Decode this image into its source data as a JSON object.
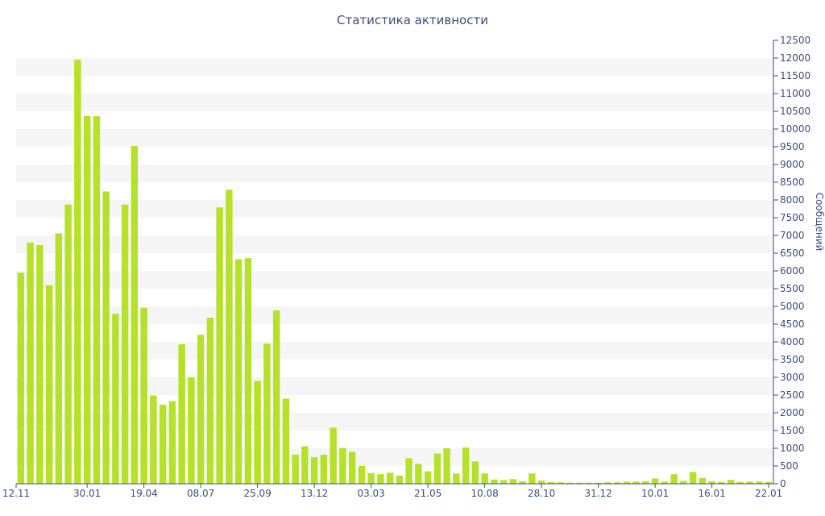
{
  "chart_data": {
    "type": "bar",
    "title": "Статистика активности",
    "xlabel": "",
    "ylabel": "Сообщений",
    "ylim": [
      0,
      12500
    ],
    "y_ticks": [
      0,
      500,
      1000,
      1500,
      2000,
      2500,
      3000,
      3500,
      4000,
      4500,
      5000,
      5500,
      6000,
      6500,
      7000,
      7500,
      8000,
      8500,
      9000,
      9500,
      10000,
      10500,
      11000,
      11500,
      12000,
      12500
    ],
    "x_tick_labels": [
      {
        "label": "12.11",
        "index": 0
      },
      {
        "label": "30.01",
        "index": 7
      },
      {
        "label": "19.04",
        "index": 13
      },
      {
        "label": "08.07",
        "index": 19
      },
      {
        "label": "25.09",
        "index": 25
      },
      {
        "label": "13.12",
        "index": 31
      },
      {
        "label": "03.03",
        "index": 37
      },
      {
        "label": "21.05",
        "index": 43
      },
      {
        "label": "10.08",
        "index": 49
      },
      {
        "label": "28.10",
        "index": 55
      },
      {
        "label": "31.12",
        "index": 61
      },
      {
        "label": "10.01",
        "index": 67
      },
      {
        "label": "16.01",
        "index": 73
      },
      {
        "label": "22.01",
        "index": 79
      }
    ],
    "values": [
      5950,
      6800,
      6730,
      5600,
      7060,
      7870,
      11950,
      10370,
      10360,
      8240,
      4790,
      7870,
      9520,
      4960,
      2490,
      2230,
      2330,
      3930,
      3000,
      4200,
      4680,
      7790,
      8290,
      6330,
      6360,
      2900,
      3950,
      4890,
      2400,
      820,
      1060,
      750,
      820,
      1580,
      1010,
      900,
      500,
      300,
      270,
      310,
      230,
      720,
      560,
      350,
      850,
      1000,
      290,
      1020,
      630,
      290,
      120,
      100,
      130,
      70,
      290,
      90,
      50,
      40,
      30,
      30,
      30,
      30,
      40,
      40,
      60,
      60,
      70,
      150,
      60,
      270,
      80,
      330,
      160,
      70,
      50,
      110,
      50,
      60,
      60,
      50
    ],
    "grid": true,
    "legend": "none",
    "bar_color": "#b5e12b",
    "band_color": "#f5f5f5",
    "axis_color": "#3b4c7d"
  }
}
